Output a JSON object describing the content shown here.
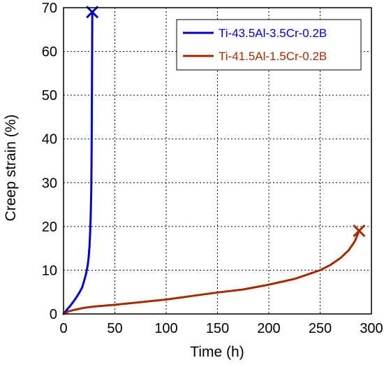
{
  "chart_data": {
    "type": "line",
    "xlabel": "Time (h)",
    "ylabel": "Creep strain (%)",
    "xlim": [
      0,
      300
    ],
    "ylim": [
      0,
      70
    ],
    "xticks": [
      0,
      50,
      100,
      150,
      200,
      250,
      300
    ],
    "yticks": [
      0,
      10,
      20,
      30,
      40,
      50,
      60,
      70
    ],
    "grid": true,
    "grid_style": "dotted",
    "legend_position": "top-right",
    "series": [
      {
        "name": "Ti-43.5Al-3.5Cr-0.2B",
        "color": "#0000cc",
        "end_marker": "x",
        "x": [
          0,
          3,
          6,
          9,
          12,
          15,
          18,
          20,
          22,
          23.5,
          24.5,
          25.3,
          26,
          26.5,
          27,
          27.3,
          27.5,
          27.7,
          27.9,
          28
        ],
        "y": [
          0,
          0.9,
          1.7,
          2.6,
          3.6,
          4.7,
          6.0,
          7.5,
          9.2,
          11.0,
          13.0,
          15.5,
          19.0,
          23.0,
          28.0,
          34.0,
          42.0,
          52.0,
          62.0,
          69.0
        ]
      },
      {
        "name": "Ti-41.5Al-1.5Cr-0.2B",
        "color": "#a52a00",
        "end_marker": "x",
        "x": [
          0,
          5,
          10,
          20,
          30,
          40,
          50,
          75,
          100,
          125,
          150,
          175,
          200,
          225,
          250,
          260,
          270,
          278,
          284,
          288
        ],
        "y": [
          0,
          0.6,
          0.9,
          1.4,
          1.7,
          1.9,
          2.1,
          2.7,
          3.3,
          4.1,
          4.9,
          5.6,
          6.7,
          8.0,
          10.0,
          11.2,
          12.8,
          14.6,
          16.7,
          19.0
        ]
      }
    ]
  }
}
